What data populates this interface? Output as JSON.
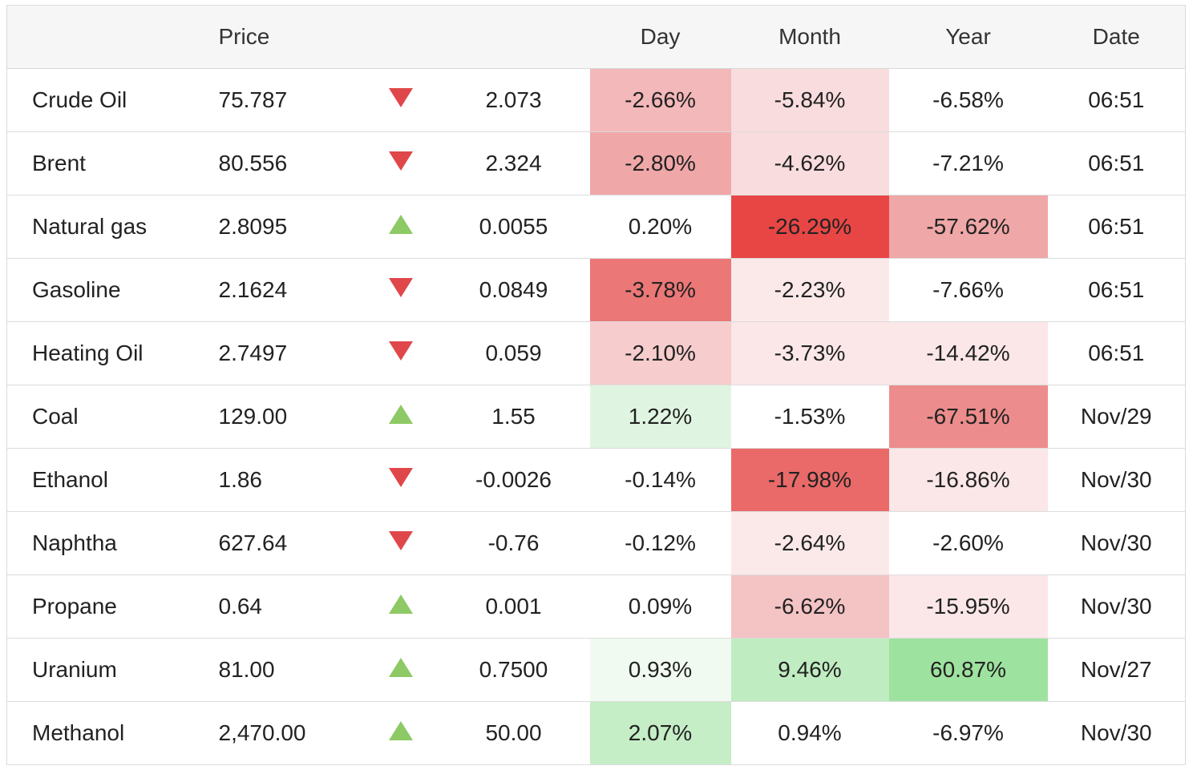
{
  "header": {
    "name": "",
    "price": "Price",
    "arrow": "",
    "change": "",
    "day": "Day",
    "month": "Month",
    "year": "Year",
    "date": "Date"
  },
  "colors": {
    "neg_light": "#f9e6e7",
    "neg_mid": "#f3c1c2",
    "neg_strong": "#e84645",
    "pos_light": "#f0f9f0",
    "pos_strong": "#9ee29f",
    "arrow_down": "#e0474a",
    "arrow_up": "#8dc964"
  },
  "rows": [
    {
      "name": "Crude Oil",
      "price": "75.787",
      "dir": "down",
      "change": "2.073",
      "change_style": "neg",
      "day": "-2.66%",
      "day_bg": "#f3b8b9",
      "day_style": "neg",
      "month": "-5.84%",
      "month_bg": "#f9dcdd",
      "year": "-6.58%",
      "year_bg": "",
      "date": "06:51"
    },
    {
      "name": "Brent",
      "price": "80.556",
      "dir": "down",
      "change": "2.324",
      "change_style": "neg",
      "day": "-2.80%",
      "day_bg": "#f0a7a8",
      "day_style": "neg",
      "month": "-4.62%",
      "month_bg": "#f9dcdd",
      "year": "-7.21%",
      "year_bg": "",
      "date": "06:51"
    },
    {
      "name": "Natural gas",
      "price": "2.8095",
      "dir": "up",
      "change": "0.0055",
      "change_style": "pos",
      "day": "0.20%",
      "day_bg": "",
      "day_style": "pos",
      "month": "-26.29%",
      "month_bg": "#e84645",
      "year": "-57.62%",
      "year_bg": "#f0a7a8",
      "date": "06:51"
    },
    {
      "name": "Gasoline",
      "price": "2.1624",
      "dir": "down",
      "change": "0.0849",
      "change_style": "neg",
      "day": "-3.78%",
      "day_bg": "#ec7777",
      "day_style": "neg",
      "month": "-2.23%",
      "month_bg": "#fbe9ea",
      "year": "-7.66%",
      "year_bg": "",
      "date": "06:51"
    },
    {
      "name": "Heating Oil",
      "price": "2.7497",
      "dir": "down",
      "change": "0.059",
      "change_style": "neg",
      "day": "-2.10%",
      "day_bg": "#f6cccd",
      "day_style": "neg",
      "month": "-3.73%",
      "month_bg": "#fbe7e8",
      "year": "-14.42%",
      "year_bg": "#fbe7e8",
      "date": "06:51"
    },
    {
      "name": "Coal",
      "price": "129.00",
      "dir": "up",
      "change": "1.55",
      "change_style": "",
      "day": "1.22%",
      "day_bg": "#e0f5e1",
      "day_style": "",
      "month": "-1.53%",
      "month_bg": "",
      "year": "-67.51%",
      "year_bg": "#ed8c8c",
      "date": "Nov/29"
    },
    {
      "name": "Ethanol",
      "price": "1.86",
      "dir": "down",
      "change": "-0.0026",
      "change_style": "",
      "day": "-0.14%",
      "day_bg": "",
      "day_style": "",
      "month": "-17.98%",
      "month_bg": "#e96a69",
      "year": "-16.86%",
      "year_bg": "#fbe7e8",
      "date": "Nov/30"
    },
    {
      "name": "Naphtha",
      "price": "627.64",
      "dir": "down",
      "change": "-0.76",
      "change_style": "",
      "day": "-0.12%",
      "day_bg": "",
      "day_style": "",
      "month": "-2.64%",
      "month_bg": "#fbe9ea",
      "year": "-2.60%",
      "year_bg": "",
      "date": "Nov/30"
    },
    {
      "name": "Propane",
      "price": "0.64",
      "dir": "up",
      "change": "0.001",
      "change_style": "",
      "day": "0.09%",
      "day_bg": "",
      "day_style": "",
      "month": "-6.62%",
      "month_bg": "#f4c3c4",
      "year": "-15.95%",
      "year_bg": "#fbe7e8",
      "date": "Nov/30"
    },
    {
      "name": "Uranium",
      "price": "81.00",
      "dir": "up",
      "change": "0.7500",
      "change_style": "",
      "day": "0.93%",
      "day_bg": "#f1faf1",
      "day_style": "",
      "month": "9.46%",
      "month_bg": "#c0ecc1",
      "year": "60.87%",
      "year_bg": "#9ee29f",
      "date": "Nov/27"
    },
    {
      "name": "Methanol",
      "price": "2,470.00",
      "dir": "up",
      "change": "50.00",
      "change_style": "",
      "day": "2.07%",
      "day_bg": "#c5edc6",
      "day_style": "",
      "month": "0.94%",
      "month_bg": "",
      "year": "-6.97%",
      "year_bg": "",
      "date": "Nov/30"
    }
  ]
}
